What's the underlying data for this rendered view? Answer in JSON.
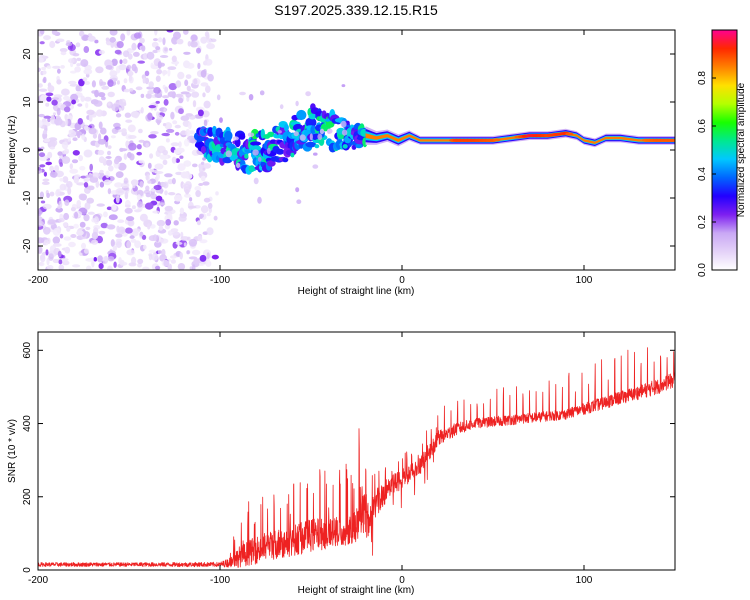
{
  "figure_title": "S197.2025.339.12.15.R15",
  "colors": {
    "snr_line": "#ee2222",
    "frame": "#000000",
    "background": "#ffffff",
    "colormap": [
      "#ffffff",
      "#e4d2f8",
      "#c9a8f5",
      "#7d1ff0",
      "#2200ff",
      "#0066ff",
      "#00c8ff",
      "#00e890",
      "#18ff00",
      "#b4ff00",
      "#ffe000",
      "#ff8000",
      "#ff2800",
      "#ff0090"
    ]
  },
  "chart_data": [
    {
      "type": "heatmap",
      "title": "",
      "xlabel": "Height of straight line (km)",
      "ylabel": "Frequency (Hz)",
      "xlim": [
        -200,
        150
      ],
      "ylim": [
        -25,
        25
      ],
      "xticks": [
        "-200",
        "-100",
        "0",
        "100"
      ],
      "xtick_values": [
        -200,
        -100,
        0,
        100
      ],
      "yticks": [
        "-20",
        "-10",
        "0",
        "10",
        "20"
      ],
      "ytick_values": [
        -20,
        -10,
        0,
        10,
        20
      ],
      "colorbar": {
        "label": "Normalized spectral amplitude",
        "range": [
          0,
          1
        ],
        "ticks": [
          "0.0",
          "0.2",
          "0.4",
          "0.6",
          "0.8"
        ],
        "tick_values": [
          0.0,
          0.2,
          0.4,
          0.6,
          0.8
        ]
      },
      "features": {
        "noise_region_x": [
          -200,
          -105
        ],
        "carrier_frequency_hz": 2,
        "turbulent_region_x": [
          -105,
          -20
        ],
        "stable_carrier_x": [
          -20,
          150
        ]
      },
      "ridge": [
        {
          "x": -112,
          "f": 2,
          "w": 2.0,
          "a": 0.3
        },
        {
          "x": -104,
          "f": 1,
          "w": 2.5,
          "a": 0.45
        },
        {
          "x": -98,
          "f": 1,
          "w": 3.0,
          "a": 0.4
        },
        {
          "x": -92,
          "f": 0,
          "w": 3.0,
          "a": 0.42
        },
        {
          "x": -86,
          "f": -1,
          "w": 3.0,
          "a": 0.4
        },
        {
          "x": -80,
          "f": 0,
          "w": 3.0,
          "a": 0.45
        },
        {
          "x": -74,
          "f": 0,
          "w": 3.5,
          "a": 0.42
        },
        {
          "x": -68,
          "f": 1,
          "w": 3.5,
          "a": 0.45
        },
        {
          "x": -62,
          "f": 2,
          "w": 3.0,
          "a": 0.4
        },
        {
          "x": -56,
          "f": 4,
          "w": 3.5,
          "a": 0.45
        },
        {
          "x": -50,
          "f": 5,
          "w": 3.5,
          "a": 0.42
        },
        {
          "x": -44,
          "f": 4,
          "w": 3.0,
          "a": 0.45
        },
        {
          "x": -38,
          "f": 4,
          "w": 3.0,
          "a": 0.45
        },
        {
          "x": -32,
          "f": 3,
          "w": 2.5,
          "a": 0.42
        },
        {
          "x": -26,
          "f": 3,
          "w": 2.0,
          "a": 0.4
        },
        {
          "x": -20,
          "f": 3,
          "w": 1.6,
          "a": 0.45
        },
        {
          "x": -14,
          "f": 2.5,
          "w": 1.3,
          "a": 0.5
        },
        {
          "x": -8,
          "f": 3,
          "w": 1.2,
          "a": 0.5
        },
        {
          "x": -2,
          "f": 2,
          "w": 1.2,
          "a": 0.55
        },
        {
          "x": 4,
          "f": 3,
          "w": 1.1,
          "a": 0.6
        },
        {
          "x": 10,
          "f": 2,
          "w": 1.0,
          "a": 0.7
        },
        {
          "x": 20,
          "f": 2,
          "w": 1.0,
          "a": 0.8
        },
        {
          "x": 30,
          "f": 2,
          "w": 1.0,
          "a": 0.9
        },
        {
          "x": 40,
          "f": 2,
          "w": 1.0,
          "a": 0.9
        },
        {
          "x": 50,
          "f": 2,
          "w": 1.0,
          "a": 0.88
        },
        {
          "x": 60,
          "f": 2.5,
          "w": 1.0,
          "a": 0.82
        },
        {
          "x": 70,
          "f": 3,
          "w": 1.0,
          "a": 0.95
        },
        {
          "x": 80,
          "f": 3,
          "w": 1.0,
          "a": 0.9
        },
        {
          "x": 90,
          "f": 3.5,
          "w": 1.0,
          "a": 0.92
        },
        {
          "x": 96,
          "f": 3,
          "w": 1.0,
          "a": 0.8
        },
        {
          "x": 100,
          "f": 2,
          "w": 1.0,
          "a": 0.72
        },
        {
          "x": 106,
          "f": 1.5,
          "w": 1.0,
          "a": 0.7
        },
        {
          "x": 112,
          "f": 2.5,
          "w": 1.0,
          "a": 0.78
        },
        {
          "x": 120,
          "f": 2.5,
          "w": 1.0,
          "a": 0.8
        },
        {
          "x": 130,
          "f": 2,
          "w": 1.0,
          "a": 0.85
        },
        {
          "x": 140,
          "f": 2,
          "w": 1.0,
          "a": 0.88
        },
        {
          "x": 150,
          "f": 2,
          "w": 1.0,
          "a": 0.88
        }
      ]
    },
    {
      "type": "line",
      "title": "",
      "xlabel": "Height of straight line (km)",
      "ylabel": "SNR (10 * v/v)",
      "xlim": [
        -200,
        150
      ],
      "ylim": [
        0,
        650
      ],
      "xticks": [
        "-200",
        "-100",
        "0",
        "100"
      ],
      "xtick_values": [
        -200,
        -100,
        0,
        100
      ],
      "yticks": [
        "0",
        "200",
        "400",
        "600"
      ],
      "ytick_values": [
        0,
        200,
        400,
        600
      ],
      "series": [
        {
          "name": "SNR",
          "x": [
            -200,
            -150,
            -100,
            -95,
            -90,
            -80,
            -70,
            -60,
            -50,
            -40,
            -30,
            -25,
            -22,
            -20,
            -18,
            -15,
            -10,
            -5,
            0,
            5,
            10,
            15,
            20,
            30,
            40,
            50,
            60,
            70,
            80,
            90,
            100,
            110,
            120,
            130,
            140,
            150
          ],
          "y": [
            15,
            15,
            15,
            20,
            35,
            55,
            70,
            80,
            95,
            100,
            110,
            125,
            190,
            150,
            130,
            175,
            210,
            230,
            250,
            265,
            285,
            320,
            360,
            385,
            400,
            405,
            410,
            415,
            420,
            425,
            440,
            455,
            470,
            485,
            500,
            520
          ],
          "noise_amplitude": [
            8,
            8,
            9,
            18,
            40,
            55,
            60,
            60,
            65,
            60,
            60,
            70,
            120,
            90,
            60,
            55,
            50,
            45,
            40,
            35,
            35,
            30,
            30,
            25,
            20,
            20,
            20,
            20,
            20,
            20,
            22,
            25,
            25,
            28,
            30,
            30
          ],
          "spike_height": [
            0,
            0,
            0,
            60,
            100,
            130,
            150,
            150,
            160,
            170,
            160,
            180,
            230,
            180,
            120,
            80,
            60,
            60,
            60,
            60,
            60,
            60,
            70,
            70,
            75,
            80,
            80,
            85,
            90,
            95,
            100,
            105,
            110,
            115,
            120,
            125
          ]
        }
      ]
    }
  ]
}
